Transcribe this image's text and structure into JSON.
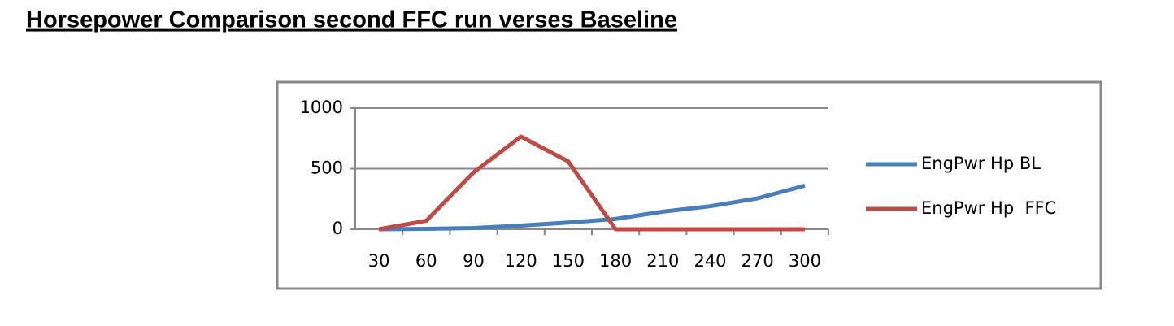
{
  "chart_data": {
    "type": "line",
    "title": "Horsepower Comparison second FFC run verses Baseline",
    "categories": [
      "30",
      "60",
      "90",
      "120",
      "150",
      "180",
      "210",
      "240",
      "270",
      "300"
    ],
    "series": [
      {
        "name": "EngPwr Hp BL",
        "color": "#4a7ebb",
        "values": [
          0,
          3,
          10,
          30,
          55,
          85,
          145,
          190,
          255,
          360
        ]
      },
      {
        "name": "EngPwr Hp  FFC",
        "color": "#be4b48",
        "values": [
          0,
          70,
          470,
          765,
          560,
          0,
          0,
          0,
          0,
          0
        ]
      }
    ],
    "ylim": [
      0,
      1000
    ],
    "yticks": [
      0,
      500,
      1000
    ],
    "grid": true,
    "legend": "right"
  }
}
